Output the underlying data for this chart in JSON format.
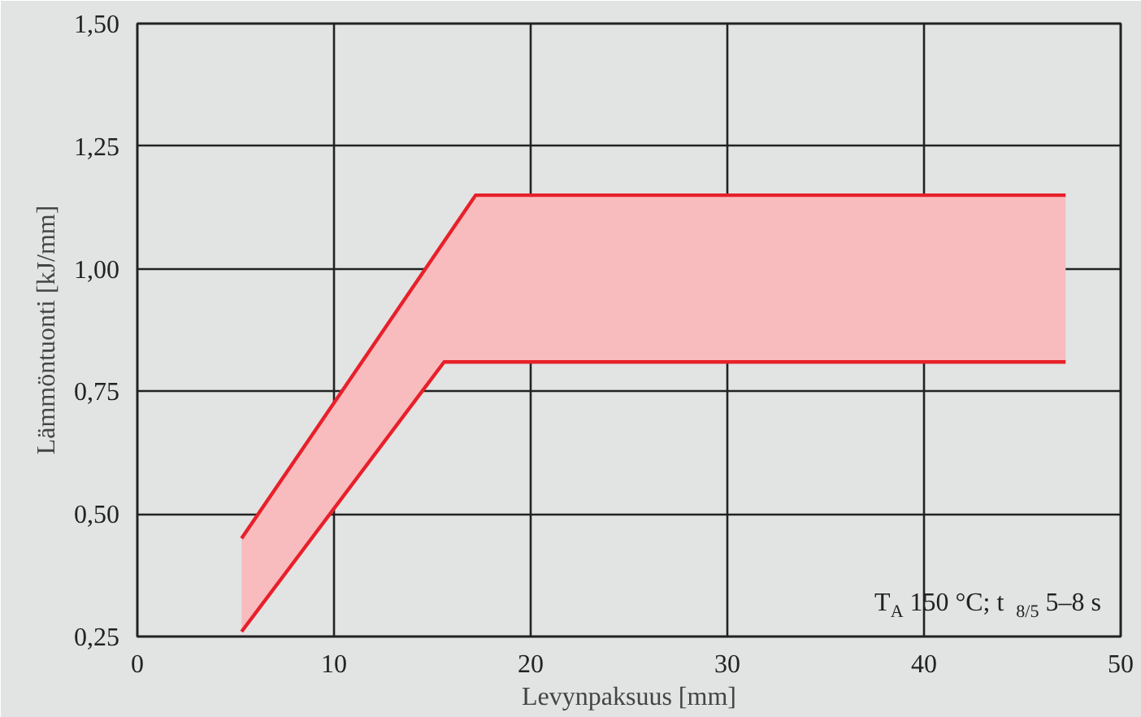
{
  "chart_data": {
    "type": "line",
    "xlabel": "Levynpaksuus [mm]",
    "ylabel": "Lämmöntuonti [kJ/mm]",
    "series": [
      {
        "color": "#e8202a",
        "x": [
          5.3,
          17.2,
          47.2
        ],
        "values": [
          0.45,
          1.15,
          1.15
        ]
      },
      {
        "color": "#e8202a",
        "x": [
          5.3,
          15.6,
          17.2,
          47.2
        ],
        "values": [
          0.26,
          0.81,
          0.81,
          0.81
        ],
        "lower": [
          0.26,
          0.81,
          0.81,
          0.81
        ],
        "upper": [
          0.45,
          1.06,
          1.15,
          1.15
        ]
      }
    ],
    "xlim": [
      0,
      50
    ],
    "xticks": [
      0,
      10,
      20,
      30,
      40,
      50
    ],
    "ylim": [
      0.25,
      1.5
    ],
    "yticks": [
      {
        "value": 0.25,
        "label": "0,25"
      },
      {
        "value": 0.5,
        "label": "0,50"
      },
      {
        "value": 0.75,
        "label": "0,75"
      },
      {
        "value": 1.0,
        "label": "1,00"
      },
      {
        "value": 1.25,
        "label": "1,25"
      },
      {
        "value": 1.5,
        "label": "1,50"
      }
    ],
    "grid": true,
    "marker": "none",
    "line_style": "solid",
    "annotations": [
      "T$_{A}$ 150 °C;   t$_{8/5}$ 5–8 s"
    ]
  }
}
